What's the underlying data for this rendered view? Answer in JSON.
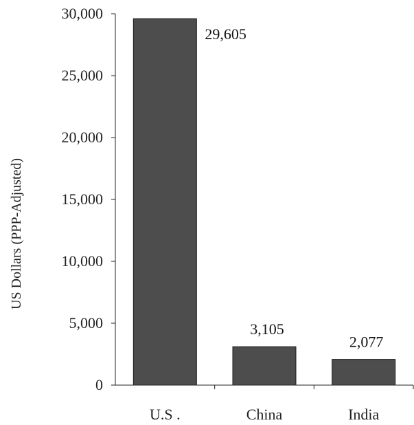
{
  "chart_data": {
    "type": "bar",
    "categories": [
      "U.S .",
      "China",
      "India"
    ],
    "values": [
      29605,
      3105,
      2077
    ],
    "data_labels": [
      "29,605",
      "3,105",
      "2,077"
    ],
    "title": "",
    "xlabel": "",
    "ylabel": "US Dollars (PPP-Adjusted)",
    "ylim": [
      0,
      30000
    ],
    "yticks": [
      0,
      5000,
      10000,
      15000,
      20000,
      25000,
      30000
    ],
    "ytick_labels": [
      "0",
      "5,000",
      "10,000",
      "15,000",
      "20,000",
      "25,000",
      "30,000"
    ],
    "grid": false,
    "legend": "none",
    "bar_color": "#4d4d4d"
  }
}
